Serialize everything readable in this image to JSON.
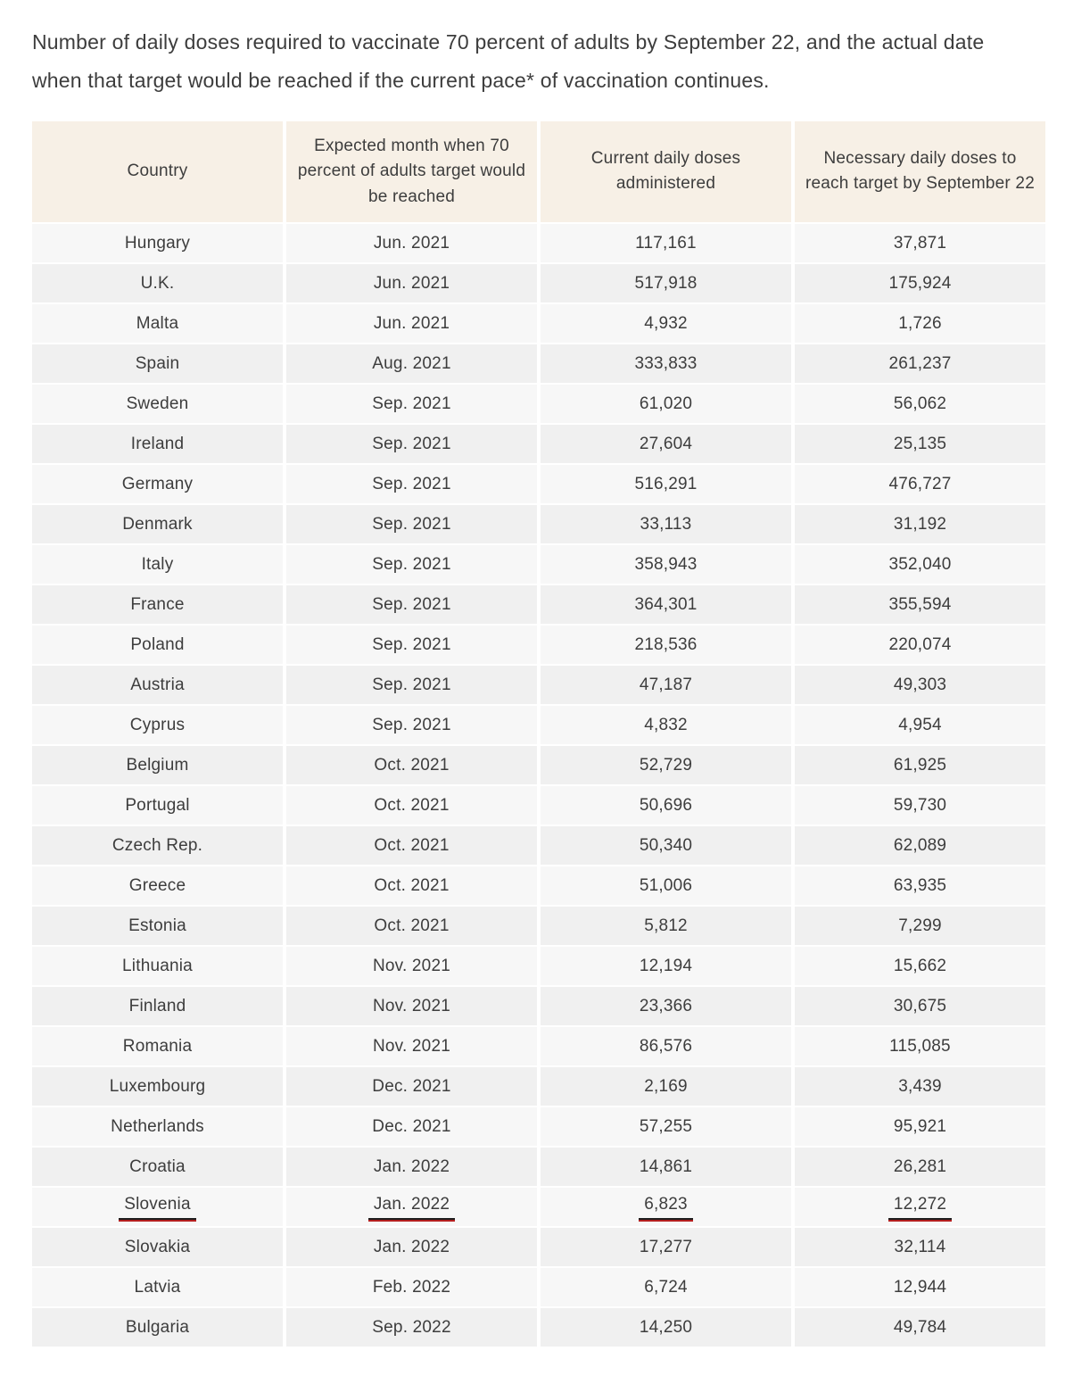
{
  "chart_data": {
    "type": "table",
    "title": "Number of daily doses required to vaccinate 70 percent of adults by September 22, and the actual date when that target would be reached if the current pace* of vaccination continues.",
    "columns": [
      "Country",
      "Expected month when 70 percent of adults target would be reached",
      "Current daily doses administered",
      "Necessary daily doses to reach target by September 22"
    ],
    "rows": [
      [
        "Hungary",
        "Jun. 2021",
        "117,161",
        "37,871"
      ],
      [
        "U.K.",
        "Jun. 2021",
        "517,918",
        "175,924"
      ],
      [
        "Malta",
        "Jun. 2021",
        "4,932",
        "1,726"
      ],
      [
        "Spain",
        "Aug. 2021",
        "333,833",
        "261,237"
      ],
      [
        "Sweden",
        "Sep. 2021",
        "61,020",
        "56,062"
      ],
      [
        "Ireland",
        "Sep. 2021",
        "27,604",
        "25,135"
      ],
      [
        "Germany",
        "Sep. 2021",
        "516,291",
        "476,727"
      ],
      [
        "Denmark",
        "Sep. 2021",
        "33,113",
        "31,192"
      ],
      [
        "Italy",
        "Sep. 2021",
        "358,943",
        "352,040"
      ],
      [
        "France",
        "Sep. 2021",
        "364,301",
        "355,594"
      ],
      [
        "Poland",
        "Sep. 2021",
        "218,536",
        "220,074"
      ],
      [
        "Austria",
        "Sep. 2021",
        "47,187",
        "49,303"
      ],
      [
        "Cyprus",
        "Sep. 2021",
        "4,832",
        "4,954"
      ],
      [
        "Belgium",
        "Oct. 2021",
        "52,729",
        "61,925"
      ],
      [
        "Portugal",
        "Oct. 2021",
        "50,696",
        "59,730"
      ],
      [
        "Czech Rep.",
        "Oct. 2021",
        "50,340",
        "62,089"
      ],
      [
        "Greece",
        "Oct. 2021",
        "51,006",
        "63,935"
      ],
      [
        "Estonia",
        "Oct. 2021",
        "5,812",
        "7,299"
      ],
      [
        "Lithuania",
        "Nov. 2021",
        "12,194",
        "15,662"
      ],
      [
        "Finland",
        "Nov. 2021",
        "23,366",
        "30,675"
      ],
      [
        "Romania",
        "Nov. 2021",
        "86,576",
        "115,085"
      ],
      [
        "Luxembourg",
        "Dec. 2021",
        "2,169",
        "3,439"
      ],
      [
        "Netherlands",
        "Dec. 2021",
        "57,255",
        "95,921"
      ],
      [
        "Croatia",
        "Jan. 2022",
        "14,861",
        "26,281"
      ],
      [
        "Slovenia",
        "Jan. 2022",
        "6,823",
        "12,272"
      ],
      [
        "Slovakia",
        "Jan. 2022",
        "17,277",
        "32,114"
      ],
      [
        "Latvia",
        "Feb. 2022",
        "6,724",
        "12,944"
      ],
      [
        "Bulgaria",
        "Sep. 2022",
        "14,250",
        "49,784"
      ]
    ],
    "highlighted_row": "Slovenia",
    "layout_hints": {
      "row_striping": true,
      "highlight_style": "red-underline",
      "columns_aligned": "center",
      "legend": "none",
      "grid": "striped-rows-with-white-gutters"
    }
  },
  "colors": {
    "header_bg": "#f7f0e6",
    "row_light": "#f7f7f7",
    "row_dark": "#f0f0f0",
    "text": "#3d3d3d",
    "underline_dark": "#1f1f1f",
    "underline_red": "#b41f1f"
  }
}
